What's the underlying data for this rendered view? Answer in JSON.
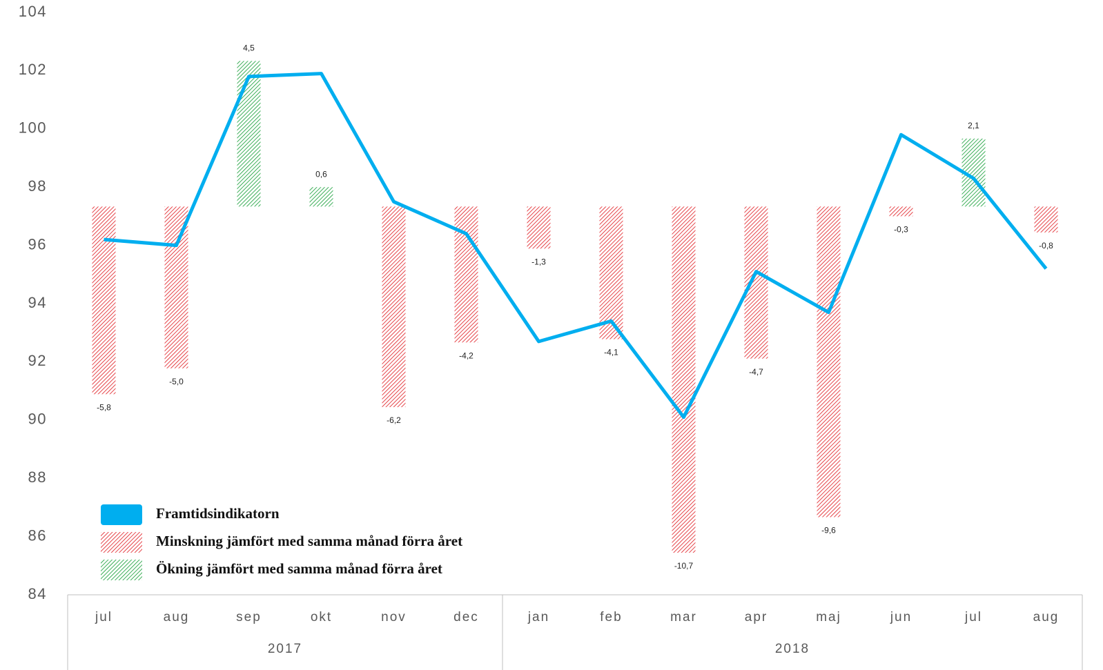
{
  "chart_data": {
    "type": "combo",
    "categories": [
      "jul",
      "aug",
      "sep",
      "okt",
      "nov",
      "dec",
      "jan",
      "feb",
      "mar",
      "apr",
      "maj",
      "jun",
      "jul",
      "aug"
    ],
    "category_years": [
      "2017",
      "2017",
      "2017",
      "2017",
      "2017",
      "2017",
      "2018",
      "2018",
      "2018",
      "2018",
      "2018",
      "2018",
      "2018",
      "2018"
    ],
    "ylim": [
      84,
      104
    ],
    "yticks": [
      84,
      86,
      88,
      90,
      92,
      94,
      96,
      98,
      100,
      102,
      104
    ],
    "y2lim": [
      -12,
      6
    ],
    "grid": false,
    "legend": "lower left",
    "series": [
      {
        "name": "Framtidsindikatorn",
        "type": "line",
        "color": "#00aeef",
        "values": [
          96.2,
          96.0,
          101.8,
          101.9,
          97.5,
          96.4,
          92.7,
          93.4,
          90.1,
          95.1,
          93.7,
          99.8,
          98.3,
          95.2
        ]
      },
      {
        "name": "Minskning jämfört med samma månad förra året",
        "type": "bar",
        "axis": "y2",
        "color": "#e0151b",
        "values": [
          -5.8,
          -5.0,
          null,
          null,
          -6.2,
          -4.2,
          -1.3,
          -4.1,
          -10.7,
          -4.7,
          -9.6,
          -0.3,
          null,
          -0.8
        ],
        "value_labels": [
          "-5,8",
          "-5,0",
          null,
          null,
          "-6,2",
          "-4,2",
          "-1,3",
          "-4,1",
          "-10,7",
          "-4,7",
          "-9,6",
          "-0,3",
          null,
          "-0,8"
        ]
      },
      {
        "name": "Ökning jämfört med samma månad förra året",
        "type": "bar",
        "axis": "y2",
        "color": "#0b9a2e",
        "values": [
          null,
          null,
          4.5,
          0.6,
          null,
          null,
          null,
          null,
          null,
          null,
          null,
          null,
          2.1,
          null
        ],
        "value_labels": [
          null,
          null,
          "4,5",
          "0,6",
          null,
          null,
          null,
          null,
          null,
          null,
          null,
          null,
          "2,1",
          null
        ]
      }
    ]
  }
}
